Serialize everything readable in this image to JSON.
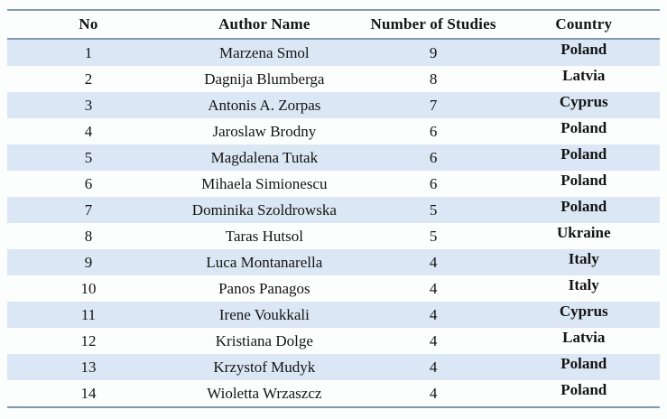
{
  "table": {
    "headers": [
      "No",
      "Author Name",
      "Number of Studies",
      "Country"
    ],
    "rows": [
      {
        "no": "1",
        "author": "Marzena Smol",
        "studies": "9",
        "country": "Poland"
      },
      {
        "no": "2",
        "author": "Dagnija Blumberga",
        "studies": "8",
        "country": "Latvia"
      },
      {
        "no": "3",
        "author": "Antonis A. Zorpas",
        "studies": "7",
        "country": "Cyprus"
      },
      {
        "no": "4",
        "author": "Jaroslaw Brodny",
        "studies": "6",
        "country": "Poland"
      },
      {
        "no": "5",
        "author": "Magdalena Tutak",
        "studies": "6",
        "country": "Poland"
      },
      {
        "no": "6",
        "author": "Mihaela Simionescu",
        "studies": "6",
        "country": "Poland"
      },
      {
        "no": "7",
        "author": "Dominika Szoldrowska",
        "studies": "5",
        "country": "Poland"
      },
      {
        "no": "8",
        "author": "Taras Hutsol",
        "studies": "5",
        "country": "Ukraine"
      },
      {
        "no": "9",
        "author": "Luca Montanarella",
        "studies": "4",
        "country": "Italy"
      },
      {
        "no": "10",
        "author": "Panos Panagos",
        "studies": "4",
        "country": "Italy"
      },
      {
        "no": "11",
        "author": "Irene Voukkali",
        "studies": "4",
        "country": "Cyprus"
      },
      {
        "no": "12",
        "author": "Kristiana Dolge",
        "studies": "4",
        "country": "Latvia"
      },
      {
        "no": "13",
        "author": "Krzystof Mudyk",
        "studies": "4",
        "country": "Poland"
      },
      {
        "no": "14",
        "author": "Wioletta Wrzaszcz",
        "studies": "4",
        "country": "Poland"
      }
    ]
  },
  "colors": {
    "row_shade": "#dbe7f4",
    "border": "#7e9ab1",
    "text": "#141414",
    "background": "#fcfdfd"
  }
}
